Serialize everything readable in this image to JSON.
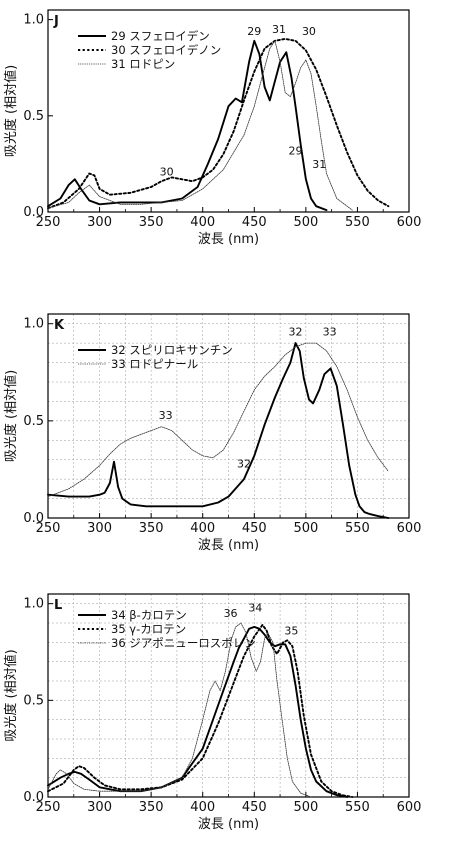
{
  "chart_data": [
    {
      "type": "line",
      "panel_label": "J",
      "xlabel": "波長 (nm)",
      "ylabel": "吸光度 (相対値)",
      "xlim": [
        250,
        600
      ],
      "ylim": [
        0,
        1.05
      ],
      "xticks": [
        250,
        300,
        350,
        400,
        450,
        500,
        550,
        600
      ],
      "yticks": [
        0.0,
        0.5,
        1.0
      ],
      "ytick_labels": [
        "0.0",
        "0.5",
        "1.0"
      ],
      "grid": false,
      "legend_position": "top-left",
      "series": [
        {
          "name": "29 スフェロイデン",
          "style": "solid",
          "x": [
            250,
            262,
            270,
            276,
            282,
            290,
            300,
            320,
            340,
            360,
            380,
            395,
            405,
            415,
            425,
            432,
            438,
            445,
            450,
            455,
            460,
            465,
            470,
            475,
            481,
            486,
            490,
            495,
            500,
            505,
            510,
            520
          ],
          "y": [
            0.03,
            0.07,
            0.14,
            0.17,
            0.12,
            0.06,
            0.04,
            0.05,
            0.05,
            0.05,
            0.07,
            0.13,
            0.25,
            0.38,
            0.55,
            0.59,
            0.57,
            0.78,
            0.89,
            0.82,
            0.65,
            0.58,
            0.68,
            0.78,
            0.83,
            0.7,
            0.55,
            0.35,
            0.17,
            0.07,
            0.03,
            0.01
          ]
        },
        {
          "name": "30 スフェロイデノン",
          "style": "dotted",
          "x": [
            250,
            265,
            280,
            290,
            295,
            300,
            310,
            330,
            350,
            360,
            370,
            380,
            390,
            400,
            410,
            420,
            430,
            440,
            450,
            460,
            470,
            480,
            490,
            500,
            510,
            520,
            530,
            540,
            550,
            560,
            570,
            580
          ],
          "y": [
            0.02,
            0.05,
            0.12,
            0.2,
            0.19,
            0.12,
            0.09,
            0.1,
            0.13,
            0.16,
            0.18,
            0.17,
            0.16,
            0.18,
            0.22,
            0.3,
            0.42,
            0.58,
            0.73,
            0.85,
            0.89,
            0.9,
            0.89,
            0.84,
            0.74,
            0.6,
            0.45,
            0.31,
            0.19,
            0.11,
            0.06,
            0.03
          ]
        },
        {
          "name": "31 ロドピン",
          "style": "fine",
          "x": [
            250,
            270,
            280,
            290,
            300,
            320,
            340,
            360,
            380,
            400,
            420,
            440,
            450,
            460,
            465,
            470,
            475,
            480,
            485,
            490,
            495,
            500,
            505,
            510,
            515,
            520,
            530,
            545
          ],
          "y": [
            0.02,
            0.05,
            0.1,
            0.14,
            0.08,
            0.04,
            0.04,
            0.05,
            0.06,
            0.12,
            0.22,
            0.4,
            0.55,
            0.75,
            0.85,
            0.89,
            0.78,
            0.62,
            0.6,
            0.67,
            0.75,
            0.79,
            0.72,
            0.55,
            0.37,
            0.2,
            0.07,
            0.01
          ]
        }
      ],
      "annotations": [
        {
          "text": "29",
          "x": 450,
          "y": 0.92
        },
        {
          "text": "31",
          "x": 474,
          "y": 0.93
        },
        {
          "text": "30",
          "x": 503,
          "y": 0.92
        },
        {
          "text": "30",
          "x": 365,
          "y": 0.19
        },
        {
          "text": "29",
          "x": 490,
          "y": 0.3
        },
        {
          "text": "31",
          "x": 513,
          "y": 0.23
        }
      ]
    },
    {
      "type": "line",
      "panel_label": "K",
      "xlabel": "波長 (nm)",
      "ylabel": "吸光度 (相対値)",
      "xlim": [
        250,
        600
      ],
      "ylim": [
        0,
        1.05
      ],
      "xticks": [
        250,
        300,
        350,
        400,
        450,
        500,
        550,
        600
      ],
      "yticks": [
        0.0,
        0.5,
        1.0
      ],
      "ytick_labels": [
        "0.0",
        "0.5",
        "1.0"
      ],
      "grid": true,
      "legend_position": "top-left",
      "series": [
        {
          "name": "32 スピリロキサンチン",
          "style": "solid",
          "x": [
            250,
            270,
            290,
            300,
            305,
            310,
            314,
            318,
            322,
            330,
            345,
            360,
            380,
            400,
            415,
            425,
            440,
            450,
            460,
            470,
            478,
            485,
            490,
            494,
            498,
            503,
            507,
            513,
            518,
            524,
            530,
            536,
            542,
            548,
            552,
            557,
            562,
            570,
            580
          ],
          "y": [
            0.12,
            0.11,
            0.11,
            0.12,
            0.13,
            0.18,
            0.29,
            0.16,
            0.1,
            0.07,
            0.06,
            0.06,
            0.06,
            0.06,
            0.08,
            0.11,
            0.2,
            0.32,
            0.48,
            0.62,
            0.72,
            0.8,
            0.9,
            0.86,
            0.72,
            0.61,
            0.59,
            0.66,
            0.74,
            0.77,
            0.68,
            0.48,
            0.27,
            0.12,
            0.06,
            0.03,
            0.02,
            0.01,
            0.0
          ]
        },
        {
          "name": "33 ロドピナール",
          "style": "fine",
          "x": [
            250,
            270,
            285,
            300,
            310,
            320,
            330,
            340,
            350,
            360,
            370,
            380,
            390,
            400,
            410,
            420,
            430,
            440,
            450,
            460,
            470,
            480,
            490,
            500,
            510,
            520,
            530,
            540,
            550,
            560,
            570,
            580
          ],
          "y": [
            0.11,
            0.15,
            0.2,
            0.27,
            0.33,
            0.38,
            0.41,
            0.43,
            0.45,
            0.47,
            0.45,
            0.4,
            0.35,
            0.32,
            0.31,
            0.35,
            0.44,
            0.55,
            0.66,
            0.73,
            0.78,
            0.84,
            0.88,
            0.9,
            0.9,
            0.86,
            0.78,
            0.66,
            0.52,
            0.4,
            0.31,
            0.24
          ]
        }
      ],
      "annotations": [
        {
          "text": "32",
          "x": 490,
          "y": 0.94
        },
        {
          "text": "33",
          "x": 523,
          "y": 0.94
        },
        {
          "text": "33",
          "x": 364,
          "y": 0.51
        },
        {
          "text": "32",
          "x": 440,
          "y": 0.26
        }
      ]
    },
    {
      "type": "line",
      "panel_label": "L",
      "xlabel": "波長 (nm)",
      "ylabel": "吸光度 (相対値)",
      "xlim": [
        250,
        600
      ],
      "ylim": [
        0,
        1.05
      ],
      "xticks": [
        250,
        300,
        350,
        400,
        450,
        500,
        550,
        600
      ],
      "yticks": [
        0.0,
        0.5,
        1.0
      ],
      "ytick_labels": [
        "0.0",
        "0.5",
        "1.0"
      ],
      "grid": true,
      "legend_position": "top-left",
      "series": [
        {
          "name": "34 β-カロテン",
          "style": "solid",
          "x": [
            250,
            262,
            270,
            276,
            282,
            290,
            300,
            320,
            340,
            360,
            380,
            400,
            410,
            420,
            430,
            435,
            440,
            445,
            450,
            455,
            460,
            465,
            470,
            475,
            480,
            485,
            490,
            495,
            500,
            505,
            510,
            520,
            530,
            540
          ],
          "y": [
            0.06,
            0.1,
            0.12,
            0.13,
            0.12,
            0.09,
            0.05,
            0.03,
            0.03,
            0.05,
            0.1,
            0.25,
            0.4,
            0.55,
            0.7,
            0.77,
            0.82,
            0.87,
            0.88,
            0.87,
            0.84,
            0.8,
            0.78,
            0.79,
            0.79,
            0.73,
            0.58,
            0.4,
            0.25,
            0.14,
            0.08,
            0.03,
            0.01,
            0.0
          ]
        },
        {
          "name": "35 γ-カロテン",
          "style": "dotted",
          "x": [
            250,
            265,
            275,
            280,
            285,
            295,
            305,
            320,
            340,
            360,
            380,
            400,
            415,
            425,
            435,
            440,
            450,
            458,
            462,
            467,
            472,
            478,
            482,
            487,
            492,
            498,
            505,
            515,
            525,
            535,
            545
          ],
          "y": [
            0.03,
            0.07,
            0.14,
            0.16,
            0.15,
            0.1,
            0.06,
            0.04,
            0.04,
            0.05,
            0.09,
            0.2,
            0.38,
            0.52,
            0.66,
            0.73,
            0.83,
            0.89,
            0.86,
            0.78,
            0.74,
            0.8,
            0.81,
            0.78,
            0.65,
            0.42,
            0.22,
            0.08,
            0.03,
            0.01,
            0.0
          ]
        },
        {
          "name": "36 ジアポニューロスポレン",
          "style": "fine",
          "x": [
            250,
            258,
            262,
            268,
            275,
            285,
            300,
            320,
            340,
            360,
            380,
            390,
            400,
            407,
            412,
            417,
            422,
            428,
            432,
            437,
            442,
            447,
            452,
            456,
            460,
            463,
            468,
            472,
            477,
            482,
            487,
            495,
            505
          ],
          "y": [
            0.04,
            0.12,
            0.14,
            0.12,
            0.07,
            0.04,
            0.03,
            0.03,
            0.03,
            0.05,
            0.1,
            0.2,
            0.4,
            0.55,
            0.6,
            0.55,
            0.65,
            0.82,
            0.88,
            0.9,
            0.85,
            0.72,
            0.65,
            0.7,
            0.82,
            0.85,
            0.8,
            0.6,
            0.4,
            0.2,
            0.08,
            0.02,
            0.0
          ]
        }
      ],
      "annotations": [
        {
          "text": "36",
          "x": 427,
          "y": 0.93
        },
        {
          "text": "34",
          "x": 451,
          "y": 0.96
        },
        {
          "text": "35",
          "x": 486,
          "y": 0.84
        }
      ]
    }
  ]
}
